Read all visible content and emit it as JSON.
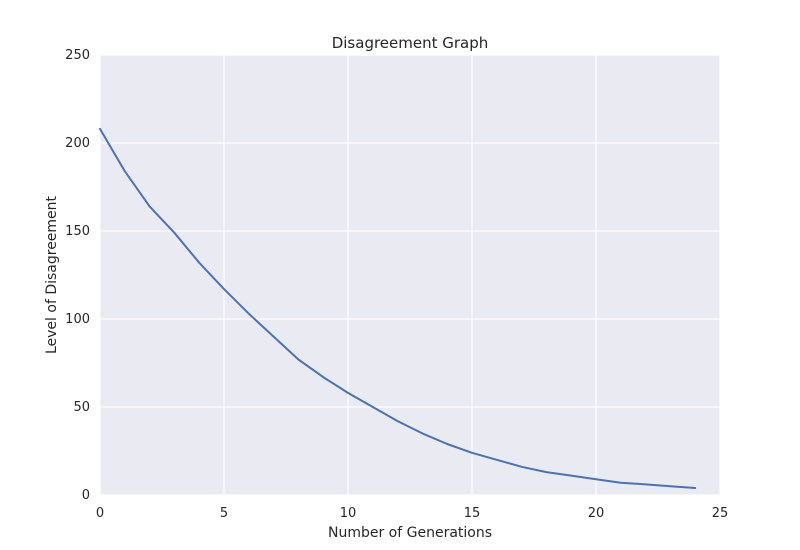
{
  "chart_data": {
    "type": "line",
    "title": "Disagreement Graph",
    "xlabel": "Number of Generations",
    "ylabel": "Level of Disagreement",
    "xlim": [
      0,
      25
    ],
    "ylim": [
      0,
      250
    ],
    "xticks": [
      0,
      5,
      10,
      15,
      20,
      25
    ],
    "yticks": [
      0,
      50,
      100,
      150,
      200,
      250
    ],
    "grid": true,
    "series": [
      {
        "color": "#4c72b0",
        "x": [
          0,
          1,
          2,
          3,
          4,
          5,
          6,
          7,
          8,
          9,
          10,
          11,
          12,
          13,
          14,
          15,
          16,
          17,
          18,
          19,
          20,
          21,
          22,
          23,
          24
        ],
        "y": [
          208,
          184,
          164,
          149,
          132,
          117,
          103,
          90,
          77,
          67,
          58,
          50,
          42,
          35,
          29,
          24,
          20,
          16,
          13,
          11,
          9,
          7,
          6,
          5,
          4
        ]
      }
    ]
  }
}
